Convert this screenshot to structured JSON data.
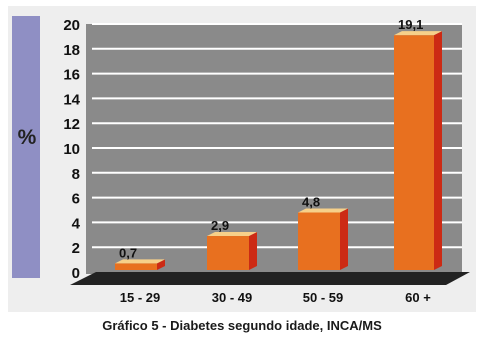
{
  "chart_data": {
    "type": "bar",
    "title": "Gráfico 5 - Diabetes segundo idade, INCA/MS",
    "xlabel": "",
    "ylabel": "%",
    "categories": [
      "15 - 29",
      "30 - 49",
      "50 - 59",
      "60 +"
    ],
    "values": [
      0.7,
      2.9,
      4.8,
      19.1
    ],
    "value_labels": [
      "0,7",
      "2,9",
      "4,8",
      "19,1"
    ],
    "ylim": [
      0,
      20
    ],
    "yticks": [
      "0",
      "2",
      "4",
      "6",
      "8",
      "10",
      "12",
      "14",
      "16",
      "18",
      "20"
    ],
    "grid": true,
    "legend": "none",
    "colors": {
      "bar_front": "#e8701f",
      "bar_side": "#cc2a14",
      "bar_top": "#f6d08a",
      "plot_background": "#8a8a8a",
      "floor": "#222222",
      "gridline": "#ffffff",
      "side_strip": "#8f8fc4"
    }
  }
}
